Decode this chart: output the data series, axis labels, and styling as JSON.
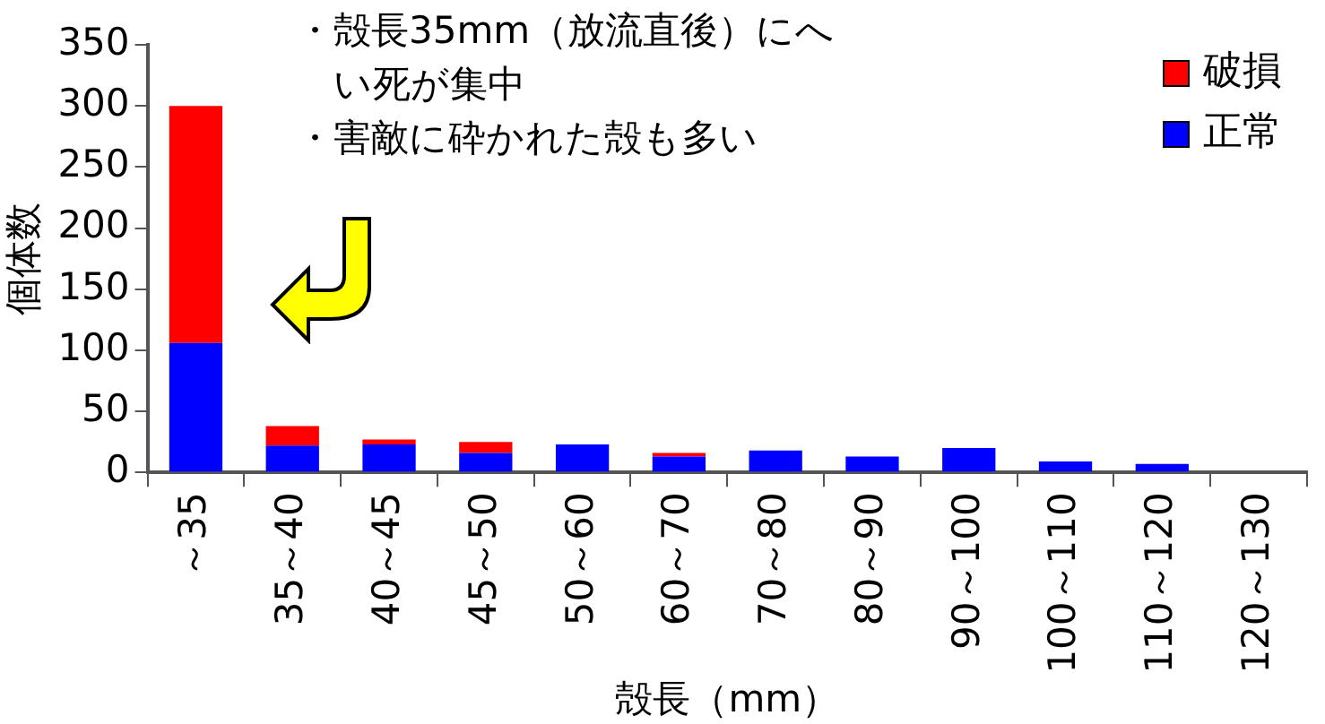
{
  "chart_data": {
    "type": "bar",
    "stacked": true,
    "xlabel": "殻長（mm）",
    "ylabel": "個体数",
    "categories": [
      "～35",
      "35～40",
      "40～45",
      "45～50",
      "50～60",
      "60～70",
      "70～80",
      "80～90",
      "90～100",
      "100～110",
      "110～120",
      "120～130"
    ],
    "series": [
      {
        "name": "正常",
        "color": "#0000ff",
        "values": [
          106,
          22,
          23,
          16,
          23,
          13,
          18,
          13,
          20,
          9,
          7,
          0
        ]
      },
      {
        "name": "破損",
        "color": "#ff0000",
        "values": [
          194,
          16,
          4,
          9,
          0,
          3,
          0,
          0,
          0,
          0,
          0,
          0
        ]
      }
    ],
    "ylim": [
      0,
      350
    ],
    "yticks": [
      0,
      50,
      100,
      150,
      200,
      250,
      300,
      350
    ],
    "grid": false,
    "legend": "top right",
    "annotations": [
      "・殻長35mm（放流直後）にへい死が集中",
      "・害敵に砕かれた殻も多い"
    ]
  }
}
